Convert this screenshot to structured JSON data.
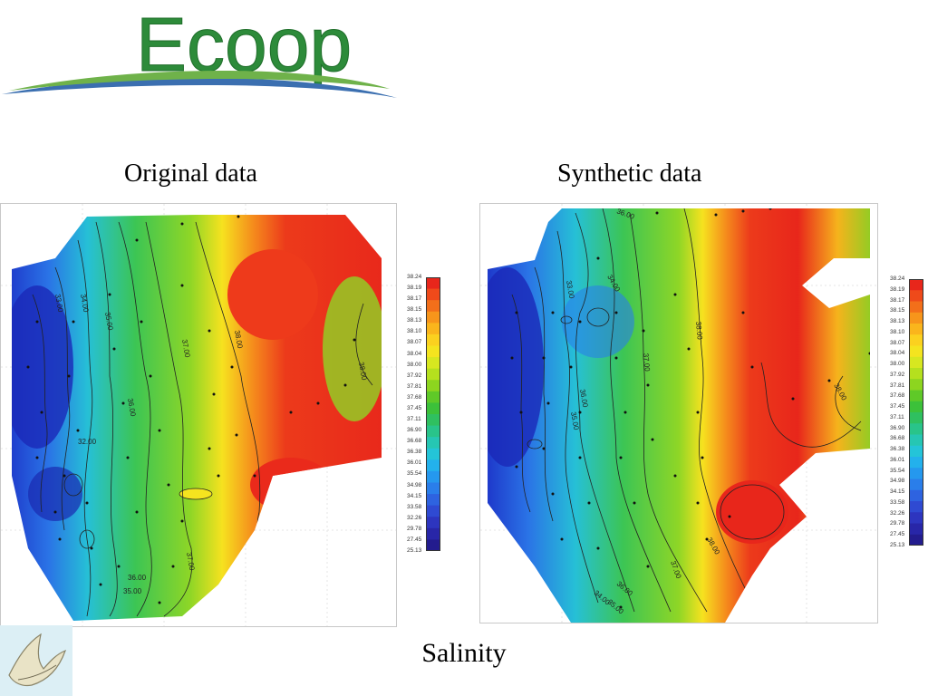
{
  "logo": {
    "text": "Ecoop",
    "color": "#2d8b3a",
    "swoosh_color": "#3b6fb0"
  },
  "panels": [
    {
      "title": "Original data"
    },
    {
      "title": "Synthetic data"
    }
  ],
  "bottom_title": "Salinity",
  "colorbar": {
    "ticks": [
      "38.24",
      "38.19",
      "38.17",
      "38.15",
      "38.13",
      "38.10",
      "38.07",
      "38.04",
      "38.00",
      "37.92",
      "37.81",
      "37.68",
      "37.45",
      "37.11",
      "36.90",
      "36.68",
      "36.38",
      "36.01",
      "35.54",
      "34.98",
      "34.15",
      "33.58",
      "32.26",
      "29.78",
      "27.45",
      "25.13"
    ],
    "colors": [
      "#e8261b",
      "#ef4a1a",
      "#f36f1a",
      "#f7951b",
      "#fab51c",
      "#fbd11f",
      "#f4e41f",
      "#d7e720",
      "#b5e01e",
      "#8dd51f",
      "#5fc928",
      "#3cc13a",
      "#2fc060",
      "#29c48a",
      "#26c6b3",
      "#24c4d8",
      "#23b1ec",
      "#2598ee",
      "#2a7eea",
      "#2e63e0",
      "#2f4ad2",
      "#2d35bf",
      "#2826a8",
      "#231c8e"
    ]
  },
  "contours": {
    "original": [
      "38.00",
      "37.00",
      "36.00",
      "35.00",
      "34.00",
      "33.00",
      "32.00",
      "38.00",
      "37.00",
      "36.00",
      "35.00"
    ],
    "synthetic": [
      "36.00",
      "34.00",
      "33.00",
      "38.00",
      "37.00",
      "36.00",
      "35.00",
      "38.00",
      "38.00",
      "37.00",
      "36.00",
      "35.00",
      "34.00"
    ]
  },
  "bird": {
    "alt": "bird"
  }
}
